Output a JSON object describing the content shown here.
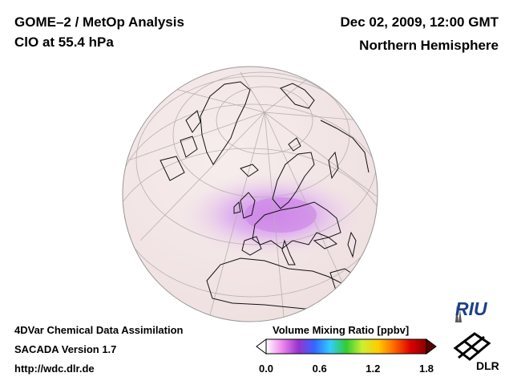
{
  "header": {
    "title": "GOME–2 / MetOp Analysis",
    "species": "ClO at 55.4 hPa",
    "datetime": "Dec 02, 2009, 12:00 GMT",
    "region": "Northern Hemisphere"
  },
  "footer": {
    "method": "4DVar Chemical Data Assimilation",
    "version": "SACADA Version 1.7",
    "url": "http://wdc.dlr.de"
  },
  "colorbar": {
    "title": "Volume Mixing Ratio [ppbv]",
    "ticks": [
      "0.0",
      "0.6",
      "1.2",
      "1.8"
    ],
    "tick_values": [
      0.0,
      0.6,
      1.2,
      1.8
    ],
    "range": [
      0.0,
      1.8
    ],
    "colors": [
      "#ffffff",
      "#ee88ee",
      "#9933cc",
      "#3366ff",
      "#33ccff",
      "#33cc33",
      "#ccee33",
      "#ffcc00",
      "#ff6600",
      "#dd0000",
      "#880000"
    ]
  },
  "logos": {
    "riu": "RIU",
    "dlr": "DLR"
  },
  "map": {
    "projection": "orthographic",
    "background_color": "#f3e6e6",
    "feature": "enhanced ClO over Europe",
    "feature_color": "#d690e6"
  }
}
